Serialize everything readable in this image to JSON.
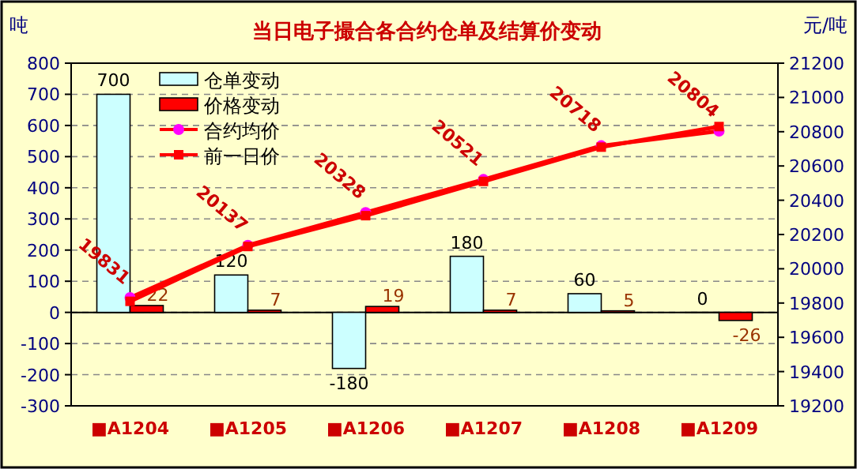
{
  "chart_data": {
    "type": "bar",
    "title": "当日电子撮合各合约仓单及结算价变动",
    "ylabel": "吨",
    "y2label": "元/吨",
    "categories": [
      "■A1204",
      "■A1205",
      "■A1206",
      "■A1207",
      "■A1208",
      "■A1209"
    ],
    "ylim": [
      -300,
      800
    ],
    "yticks": [
      -300,
      -200,
      -100,
      0,
      100,
      200,
      300,
      400,
      500,
      600,
      700,
      800
    ],
    "y2lim": [
      19200,
      21200
    ],
    "y2ticks": [
      19200,
      19400,
      19600,
      19800,
      20000,
      20200,
      20400,
      20600,
      20800,
      21000,
      21200
    ],
    "grid": "y",
    "legend": "top left",
    "series": [
      {
        "name": "仓单变动",
        "color": "#ccffff",
        "values": [
          700,
          120,
          -180,
          180,
          60,
          0
        ],
        "value_labels": [
          "700",
          "120",
          "-180",
          "180",
          "60",
          "0"
        ]
      },
      {
        "name": "价格变动",
        "color": "#ff0000",
        "values": [
          22,
          7,
          19,
          7,
          5,
          -26
        ],
        "value_labels": [
          "22",
          "7",
          "19",
          "7",
          "5",
          "-26"
        ]
      },
      {
        "name": "合约均价",
        "type": "line",
        "axis": "y2",
        "color": "#ff0000",
        "marker": "circle",
        "values": [
          19831,
          20137,
          20328,
          20521,
          20718,
          20804
        ],
        "value_labels": [
          "19831",
          "20137",
          "20328",
          "20521",
          "20718",
          "20804"
        ]
      },
      {
        "name": "前一日价",
        "type": "line",
        "axis": "y2",
        "color": "#ff0000",
        "marker": "square",
        "values": [
          19810,
          20130,
          20310,
          20510,
          20710,
          20830
        ]
      }
    ]
  }
}
